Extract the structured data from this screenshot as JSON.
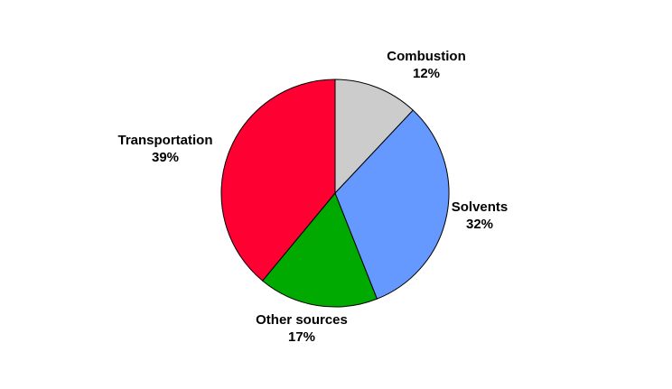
{
  "chart_data": {
    "type": "pie",
    "categories": [
      "Combustion",
      "Solvents",
      "Other sources",
      "Transportation"
    ],
    "values": [
      12,
      32,
      17,
      39
    ],
    "value_labels": [
      "12%",
      "32%",
      "17%",
      "39%"
    ],
    "colors": [
      "#cccccc",
      "#6699ff",
      "#00aa00",
      "#ff0033"
    ]
  }
}
